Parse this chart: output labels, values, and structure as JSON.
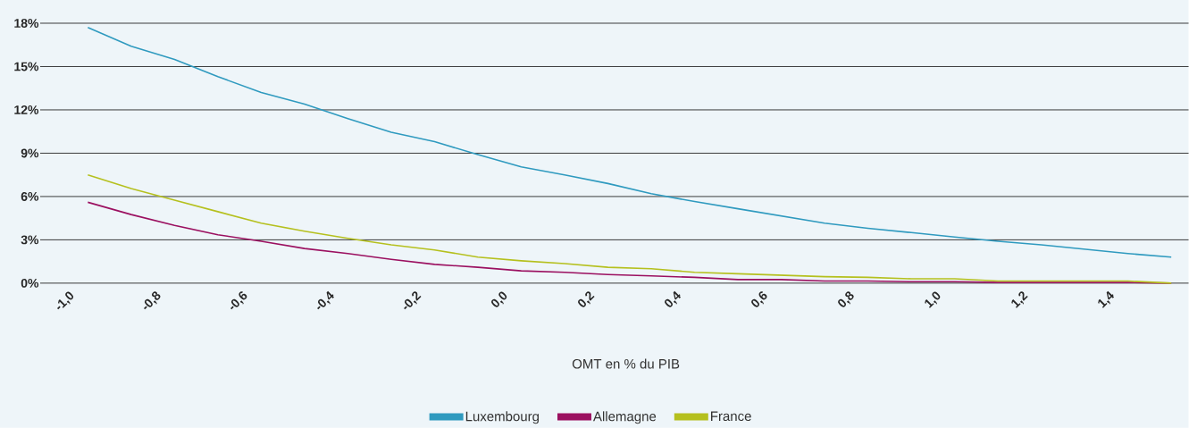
{
  "chart_data": {
    "type": "line",
    "xlabel": "OMT en % du PIB",
    "x": [
      -0.95,
      -0.85,
      -0.75,
      -0.65,
      -0.55,
      -0.45,
      -0.35,
      -0.25,
      -0.15,
      -0.05,
      0.05,
      0.15,
      0.25,
      0.35,
      0.45,
      0.55,
      0.65,
      0.75,
      0.85,
      0.95,
      1.05,
      1.15,
      1.25,
      1.35,
      1.45,
      1.55
    ],
    "xlim": [
      -1.06,
      1.59
    ],
    "xticks": [
      {
        "value": -1.0,
        "label": "-1,0"
      },
      {
        "value": -0.8,
        "label": "-0,8"
      },
      {
        "value": -0.6,
        "label": "-0,6"
      },
      {
        "value": -0.4,
        "label": "-0,4"
      },
      {
        "value": -0.2,
        "label": "-0,2"
      },
      {
        "value": 0.0,
        "label": "0,0"
      },
      {
        "value": 0.2,
        "label": "0,2"
      },
      {
        "value": 0.4,
        "label": "0,4"
      },
      {
        "value": 0.6,
        "label": "0,6"
      },
      {
        "value": 0.8,
        "label": "0,8"
      },
      {
        "value": 1.0,
        "label": "1,0"
      },
      {
        "value": 1.2,
        "label": "1,2"
      },
      {
        "value": 1.4,
        "label": "1,4"
      }
    ],
    "ylim": [
      0,
      18
    ],
    "yticks": [
      {
        "value": 0,
        "label": "0%"
      },
      {
        "value": 3,
        "label": "3%"
      },
      {
        "value": 6,
        "label": "6%"
      },
      {
        "value": 9,
        "label": "9%"
      },
      {
        "value": 12,
        "label": "12%"
      },
      {
        "value": 15,
        "label": "15%"
      },
      {
        "value": 18,
        "label": "18%"
      }
    ],
    "grid": "y",
    "legend": "bottom",
    "marker": "none",
    "line_style": "solid",
    "series": [
      {
        "name": "Luxembourg",
        "color": "#2f9abf",
        "values": [
          17.7,
          16.4,
          15.5,
          14.3,
          13.2,
          12.4,
          11.4,
          10.45,
          9.8,
          8.9,
          8.05,
          7.5,
          6.9,
          6.2,
          5.65,
          5.15,
          4.65,
          4.15,
          3.8,
          3.5,
          3.2,
          2.9,
          2.65,
          2.35,
          2.05,
          1.8
        ]
      },
      {
        "name": "Allemagne",
        "color": "#9b1060",
        "values": [
          5.6,
          4.75,
          4.0,
          3.35,
          2.9,
          2.4,
          2.05,
          1.65,
          1.3,
          1.1,
          0.85,
          0.75,
          0.6,
          0.5,
          0.4,
          0.25,
          0.25,
          0.15,
          0.15,
          0.1,
          0.1,
          0.05,
          0.05,
          0.05,
          0.05,
          0.0
        ]
      },
      {
        "name": "France",
        "color": "#b5c01e",
        "values": [
          7.5,
          6.55,
          5.75,
          4.95,
          4.15,
          3.6,
          3.1,
          2.65,
          2.3,
          1.8,
          1.55,
          1.35,
          1.1,
          1.0,
          0.75,
          0.65,
          0.55,
          0.45,
          0.4,
          0.3,
          0.3,
          0.15,
          0.15,
          0.15,
          0.15,
          0.0
        ]
      }
    ]
  }
}
